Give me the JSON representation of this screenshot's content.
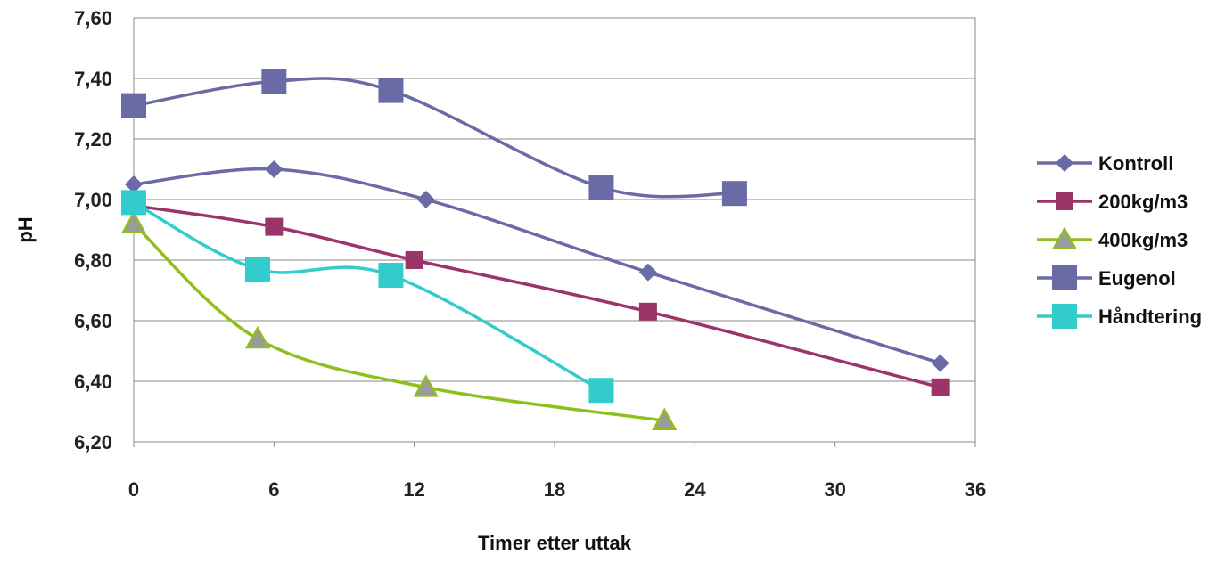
{
  "chart_data": {
    "type": "line",
    "title": "",
    "xlabel": "Timer etter uttak",
    "ylabel": "pH",
    "xlim": [
      0,
      36
    ],
    "ylim": [
      6.2,
      7.6
    ],
    "x_ticks": [
      "0",
      "6",
      "12",
      "18",
      "24",
      "30",
      "36"
    ],
    "y_ticks": [
      "6,20",
      "6,40",
      "6,60",
      "6,80",
      "7,00",
      "7,20",
      "7,40",
      "7,60"
    ],
    "grid": "horizontal",
    "legend_position": "right",
    "series": [
      {
        "name": "Kontroll",
        "color": "#6a6aa6",
        "marker": "diamond",
        "points": [
          [
            0,
            7.05
          ],
          [
            6,
            7.1
          ],
          [
            12.5,
            7.0
          ],
          [
            22,
            6.76
          ],
          [
            34.5,
            6.46
          ]
        ]
      },
      {
        "name": "200kg/m3",
        "color": "#9b3468",
        "marker": "square",
        "points": [
          [
            0,
            6.98
          ],
          [
            6,
            6.91
          ],
          [
            12,
            6.8
          ],
          [
            22,
            6.63
          ],
          [
            34.5,
            6.38
          ]
        ]
      },
      {
        "name": "400kg/m3",
        "color": "#8fbf1f",
        "marker": "triangle",
        "points": [
          [
            0,
            6.92
          ],
          [
            5.3,
            6.54
          ],
          [
            12.5,
            6.38
          ],
          [
            22.7,
            6.27
          ]
        ]
      },
      {
        "name": "Eugenol",
        "color": "#6a6aa6",
        "marker": "bigsquare",
        "points": [
          [
            0,
            7.31
          ],
          [
            6,
            7.39
          ],
          [
            11,
            7.36
          ],
          [
            20,
            7.04
          ],
          [
            25.7,
            7.02
          ]
        ]
      },
      {
        "name": "Håndtering",
        "color": "#33cccc",
        "marker": "bigsquare",
        "points": [
          [
            0,
            6.99
          ],
          [
            5.3,
            6.77
          ],
          [
            11,
            6.75
          ],
          [
            20,
            6.37
          ]
        ]
      }
    ]
  }
}
